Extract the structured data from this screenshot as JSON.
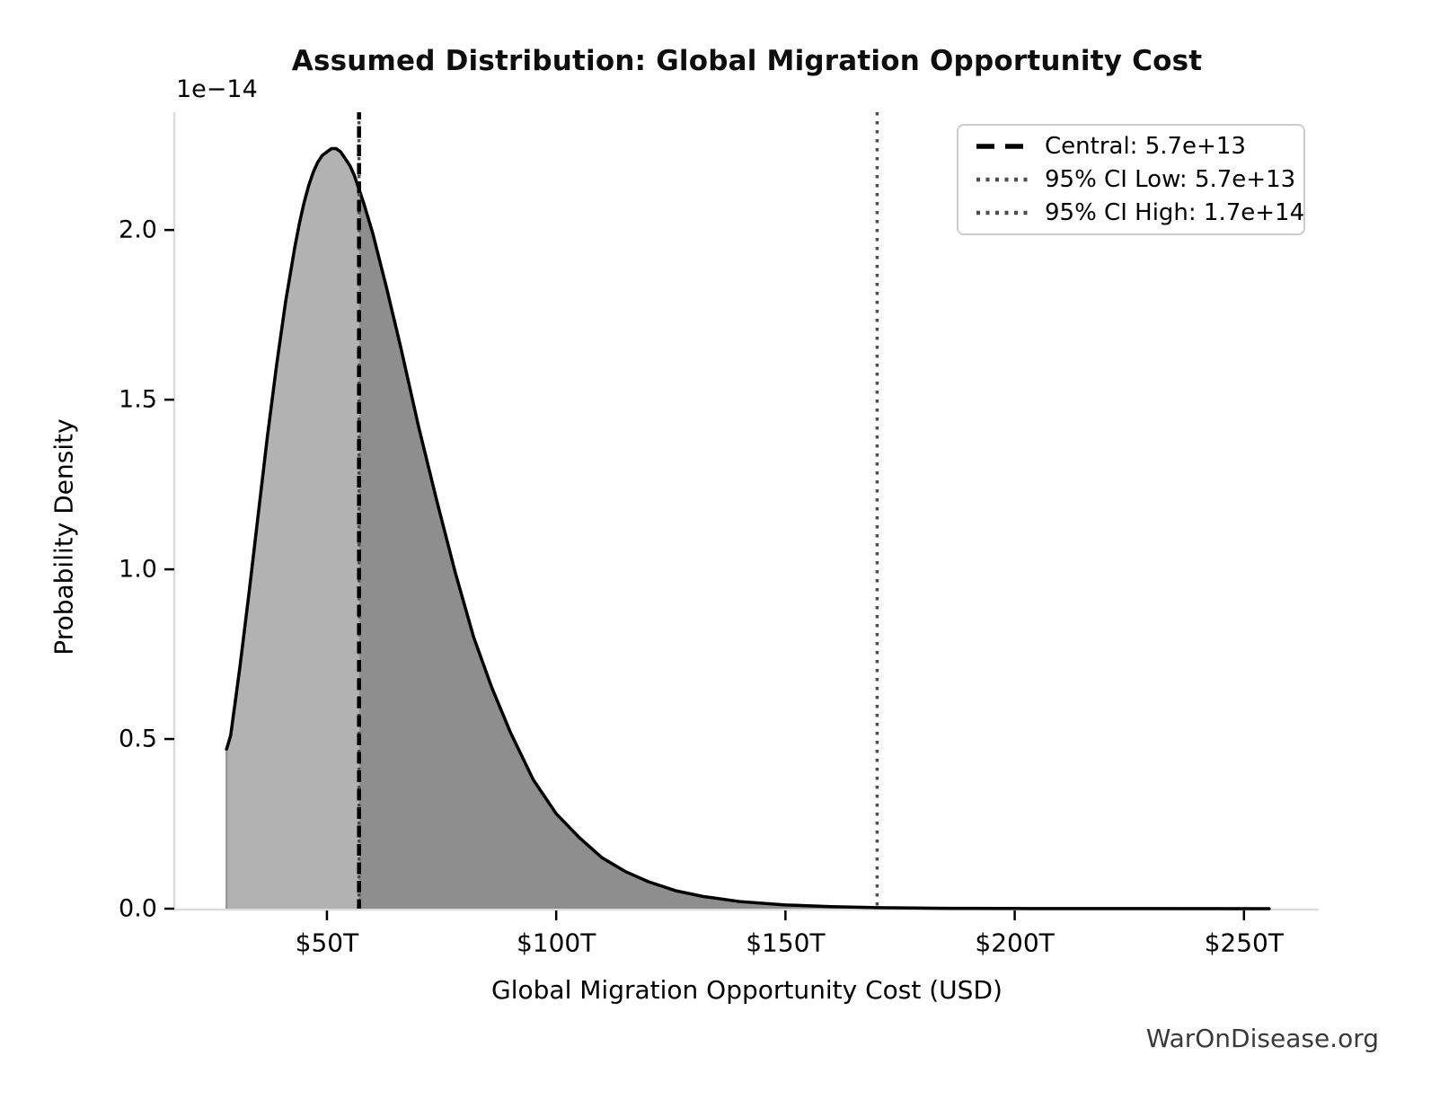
{
  "watermark": "WarOnDisease.org",
  "chart_data": {
    "type": "area",
    "title": "Assumed Distribution: Global Migration Opportunity Cost",
    "xlabel": "Global Migration Opportunity Cost (USD)",
    "ylabel": "Probability Density",
    "y_offset_text": "1e−14",
    "grid": false,
    "legend_position": "upper right",
    "x_tick_values_T": [
      50,
      100,
      150,
      200,
      250
    ],
    "x_tick_labels": [
      "$50T",
      "$100T",
      "$150T",
      "$200T",
      "$250T"
    ],
    "y_tick_values": [
      0,
      0.5,
      1.0,
      1.5,
      2.0
    ],
    "y_tick_labels": [
      "0.0",
      "0.5",
      "1.0",
      "1.5",
      "2.0"
    ],
    "xlim_T": [
      16.9,
      266.3
    ],
    "ylim_1e14": [
      0,
      2.347
    ],
    "series": [
      {
        "name": "probability-density-curve",
        "x_T": [
          28.1,
          29,
          31,
          33,
          35,
          37,
          39,
          41,
          43,
          44,
          45,
          46,
          47,
          48,
          49,
          50,
          51,
          52,
          53,
          54,
          55,
          56,
          57,
          58,
          60,
          63,
          66,
          70,
          74,
          78,
          82,
          86,
          90,
          95,
          100,
          105,
          110,
          115,
          120,
          126,
          132,
          140,
          150,
          160,
          170,
          185,
          200,
          225,
          255.5
        ],
        "y_1e14": [
          0.47,
          0.51,
          0.71,
          0.93,
          1.16,
          1.39,
          1.6,
          1.79,
          1.95,
          2.02,
          2.08,
          2.13,
          2.17,
          2.2,
          2.22,
          2.23,
          2.24,
          2.24,
          2.23,
          2.21,
          2.19,
          2.16,
          2.12,
          2.08,
          1.99,
          1.83,
          1.66,
          1.42,
          1.2,
          0.99,
          0.8,
          0.65,
          0.52,
          0.38,
          0.28,
          0.21,
          0.15,
          0.11,
          0.08,
          0.053,
          0.036,
          0.021,
          0.011,
          0.006,
          0.003,
          0.001,
          0.0005,
          0.0002,
          0.0001
        ]
      }
    ],
    "markers": {
      "central_T": 57,
      "central_value": "5.7e+13",
      "ci_low_T": 57,
      "ci_low_value": "5.7e+13",
      "ci_high_T": 170,
      "ci_high_value": "1.7e+14"
    },
    "legend": [
      {
        "label": "Central: 5.7e+13",
        "line_style": "dashed",
        "color": "#000000"
      },
      {
        "label": "95% CI Low: 5.7e+13",
        "line_style": "dotted",
        "color": "#4d4d4d"
      },
      {
        "label": "95% CI High: 1.7e+14",
        "line_style": "dotted",
        "color": "#4d4d4d"
      }
    ],
    "colors": {
      "curve": "#000000",
      "fill_below_central": "#b2b2b2",
      "fill_ci": "#8e8e8e",
      "fill_edge": "#8f8f8f",
      "spine": "#dcdcdc",
      "tick": "#000000",
      "dashed_line": "#000000",
      "dotted_line": "#4d4d4d",
      "legend_border": "#cccccc",
      "watermark": "#3a3a3a"
    }
  }
}
